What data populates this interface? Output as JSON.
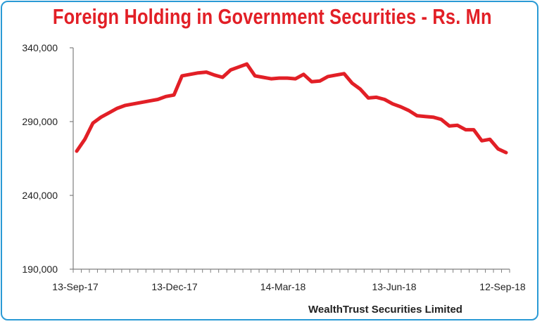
{
  "chart_data": {
    "type": "line",
    "title": "Foreign Holding in Government Securities - Rs. Mn",
    "source": "WealthTrust Securities Limited",
    "xlabel": "",
    "ylabel": "",
    "x_tick_labels": [
      "13-Sep-17",
      "13-Dec-17",
      "14-Mar-18",
      "13-Jun-18",
      "12-Sep-18"
    ],
    "y_tick_labels": [
      "190,000",
      "240,000",
      "290,000",
      "340,000"
    ],
    "y_ticks": [
      190000,
      240000,
      290000,
      340000
    ],
    "ylim": [
      190000,
      340000
    ],
    "grid": false,
    "legend": "none",
    "line_color": "#e21f26",
    "series": [
      {
        "values": [
          270000,
          278000,
          289000,
          293000,
          296000,
          299000,
          301000,
          302000,
          303000,
          304000,
          305000,
          307000,
          308000,
          321000,
          322000,
          323000,
          323500,
          321500,
          320000,
          325000,
          327000,
          329000,
          321000,
          320000,
          319000,
          319500,
          319500,
          319000,
          322000,
          317000,
          317500,
          320500,
          321500,
          322500,
          316000,
          312000,
          306000,
          306500,
          305000,
          302000,
          300000,
          297500,
          294000,
          293500,
          293000,
          291500,
          287000,
          287500,
          284500,
          284500,
          277000,
          278000,
          271500,
          269000
        ]
      }
    ]
  }
}
